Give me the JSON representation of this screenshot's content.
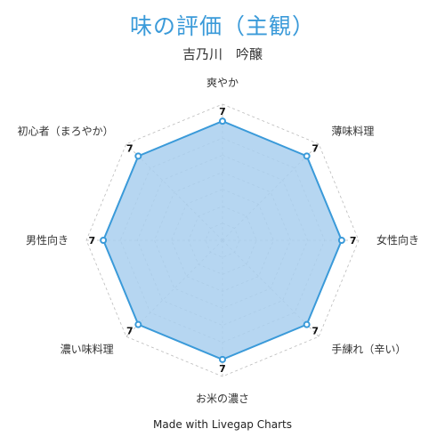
{
  "title": "味の評価（主観）",
  "subtitle": "吉乃川　吟醸",
  "footer": "Made with Livegap Charts",
  "colors": {
    "title": "#3a9ad9",
    "fill": "#a9cfee",
    "stroke": "#3a9ad9",
    "point_fill": "#ffffff",
    "grid": "#bbbbbb"
  },
  "chart_data": {
    "type": "radar",
    "title": "味の評価（主観）",
    "subtitle": "吉乃川　吟醸",
    "categories": [
      "爽やか",
      "薄味料理",
      "女性向き",
      "手練れ（辛い）",
      "お米の濃さ",
      "濃い味料理",
      "男性向き",
      "初心者（まろやか）"
    ],
    "series": [
      {
        "values": [
          7,
          7,
          7,
          7,
          7,
          7,
          7,
          7
        ]
      }
    ],
    "range": [
      0,
      8
    ],
    "grid_levels": 8,
    "grid": true
  }
}
